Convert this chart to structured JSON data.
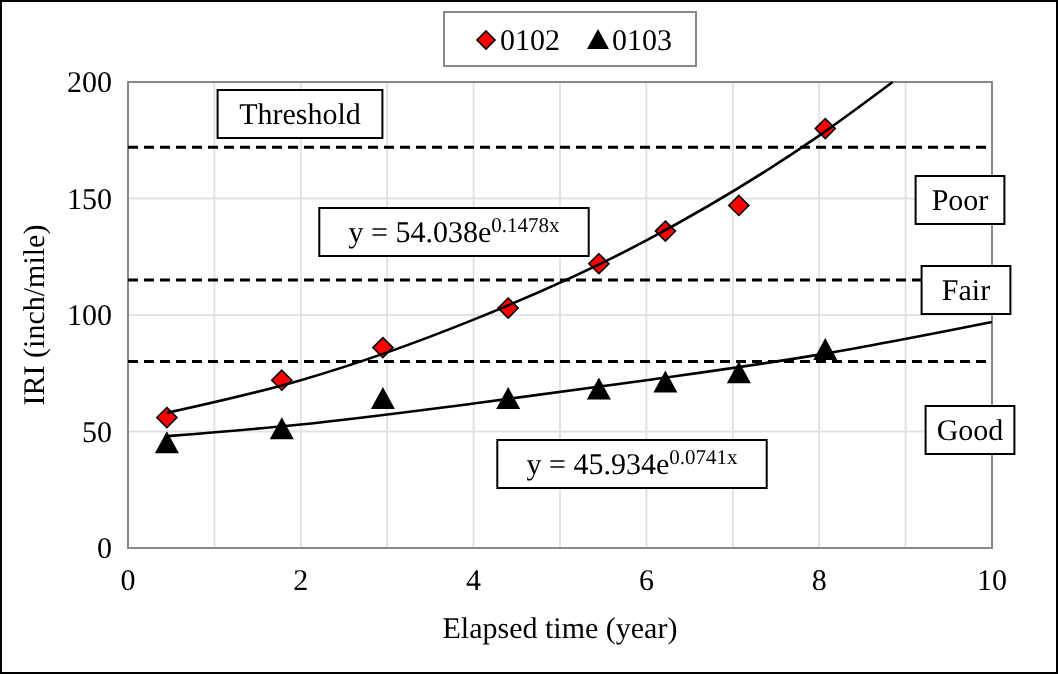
{
  "chart_data": {
    "type": "scatter",
    "xlabel": "Elapsed time (year)",
    "ylabel": "IRI (inch/mile)",
    "xlim": [
      0,
      10
    ],
    "ylim": [
      0,
      200
    ],
    "xticks": [
      0,
      {
        "value": 1,
        "label": null
      },
      2,
      {
        "value": 3,
        "label": null
      },
      4,
      {
        "value": 5,
        "label": null
      },
      6,
      {
        "value": 7,
        "label": null
      },
      8,
      {
        "value": 9,
        "label": null
      },
      10
    ],
    "yticks": [
      0,
      50,
      100,
      150,
      200
    ],
    "grid": true,
    "legend": "top",
    "series": [
      {
        "name": "0102",
        "color": "#ff0000",
        "marker": "diamond",
        "x": [
          0.45,
          1.78,
          2.95,
          4.4,
          5.45,
          6.22,
          7.07,
          8.07
        ],
        "values": [
          56,
          72,
          86,
          103,
          122,
          136,
          147,
          180
        ]
      },
      {
        "name": "0103",
        "color": "#000000",
        "marker": "triangle",
        "x": [
          0.45,
          1.78,
          2.95,
          4.4,
          5.45,
          6.22,
          7.07,
          8.07
        ],
        "values": [
          45,
          51,
          64,
          64,
          68,
          71,
          75,
          85
        ]
      },
      {
        "type": "line",
        "color": "#000000",
        "marker": "none",
        "x": [
          0.45,
          2,
          4,
          6,
          8,
          8.85
        ],
        "values": [
          58,
          72,
          98,
          132,
          177,
          200
        ]
      },
      {
        "type": "line",
        "color": "#000000",
        "marker": "none",
        "x": [
          0.45,
          2,
          4,
          6,
          8,
          10
        ],
        "values": [
          48,
          53,
          62,
          72,
          83,
          97
        ]
      }
    ],
    "ref_lines": [
      {
        "axis": "y",
        "value": 172,
        "line_style": "dashed"
      },
      {
        "axis": "y",
        "value": 115,
        "line_style": "dashed"
      },
      {
        "axis": "y",
        "value": 80,
        "line_style": "dashed"
      }
    ],
    "annotations": [
      "Threshold",
      "Poor",
      "Fair",
      "Good",
      "y = 54.038e$^{0.1478x}$",
      "y = 45.934e$^{0.0741x}$"
    ]
  }
}
